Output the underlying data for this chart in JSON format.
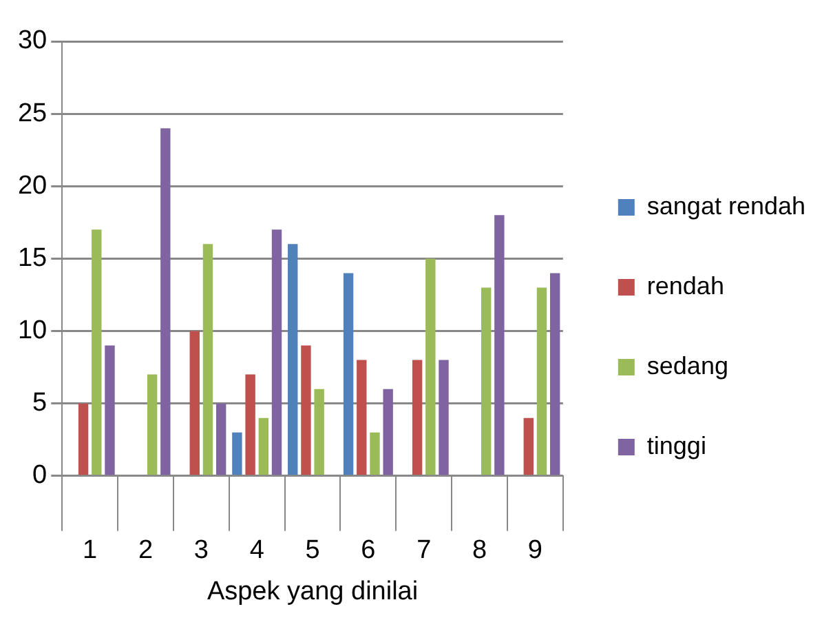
{
  "chart_data": {
    "type": "bar",
    "xlabel": "Aspek yang dinilai",
    "categories": [
      "1",
      "2",
      "3",
      "4",
      "5",
      "6",
      "7",
      "8",
      "9"
    ],
    "series": [
      {
        "name": "sangat rendah",
        "color": "#4f81bd",
        "values": [
          0,
          0,
          0,
          3,
          16,
          14,
          0,
          0,
          0
        ]
      },
      {
        "name": "rendah",
        "color": "#c0504d",
        "values": [
          5,
          0,
          10,
          7,
          9,
          8,
          8,
          0,
          4
        ]
      },
      {
        "name": "sedang",
        "color": "#9bbb59",
        "values": [
          17,
          7,
          16,
          4,
          6,
          3,
          15,
          13,
          13
        ]
      },
      {
        "name": "tinggi",
        "color": "#8064a2",
        "values": [
          9,
          24,
          5,
          17,
          0,
          6,
          8,
          18,
          14
        ]
      }
    ],
    "ylim": [
      0,
      30
    ],
    "yticks": [
      0,
      5,
      10,
      15,
      20,
      25,
      30
    ],
    "grid": "y",
    "legend": "right"
  }
}
